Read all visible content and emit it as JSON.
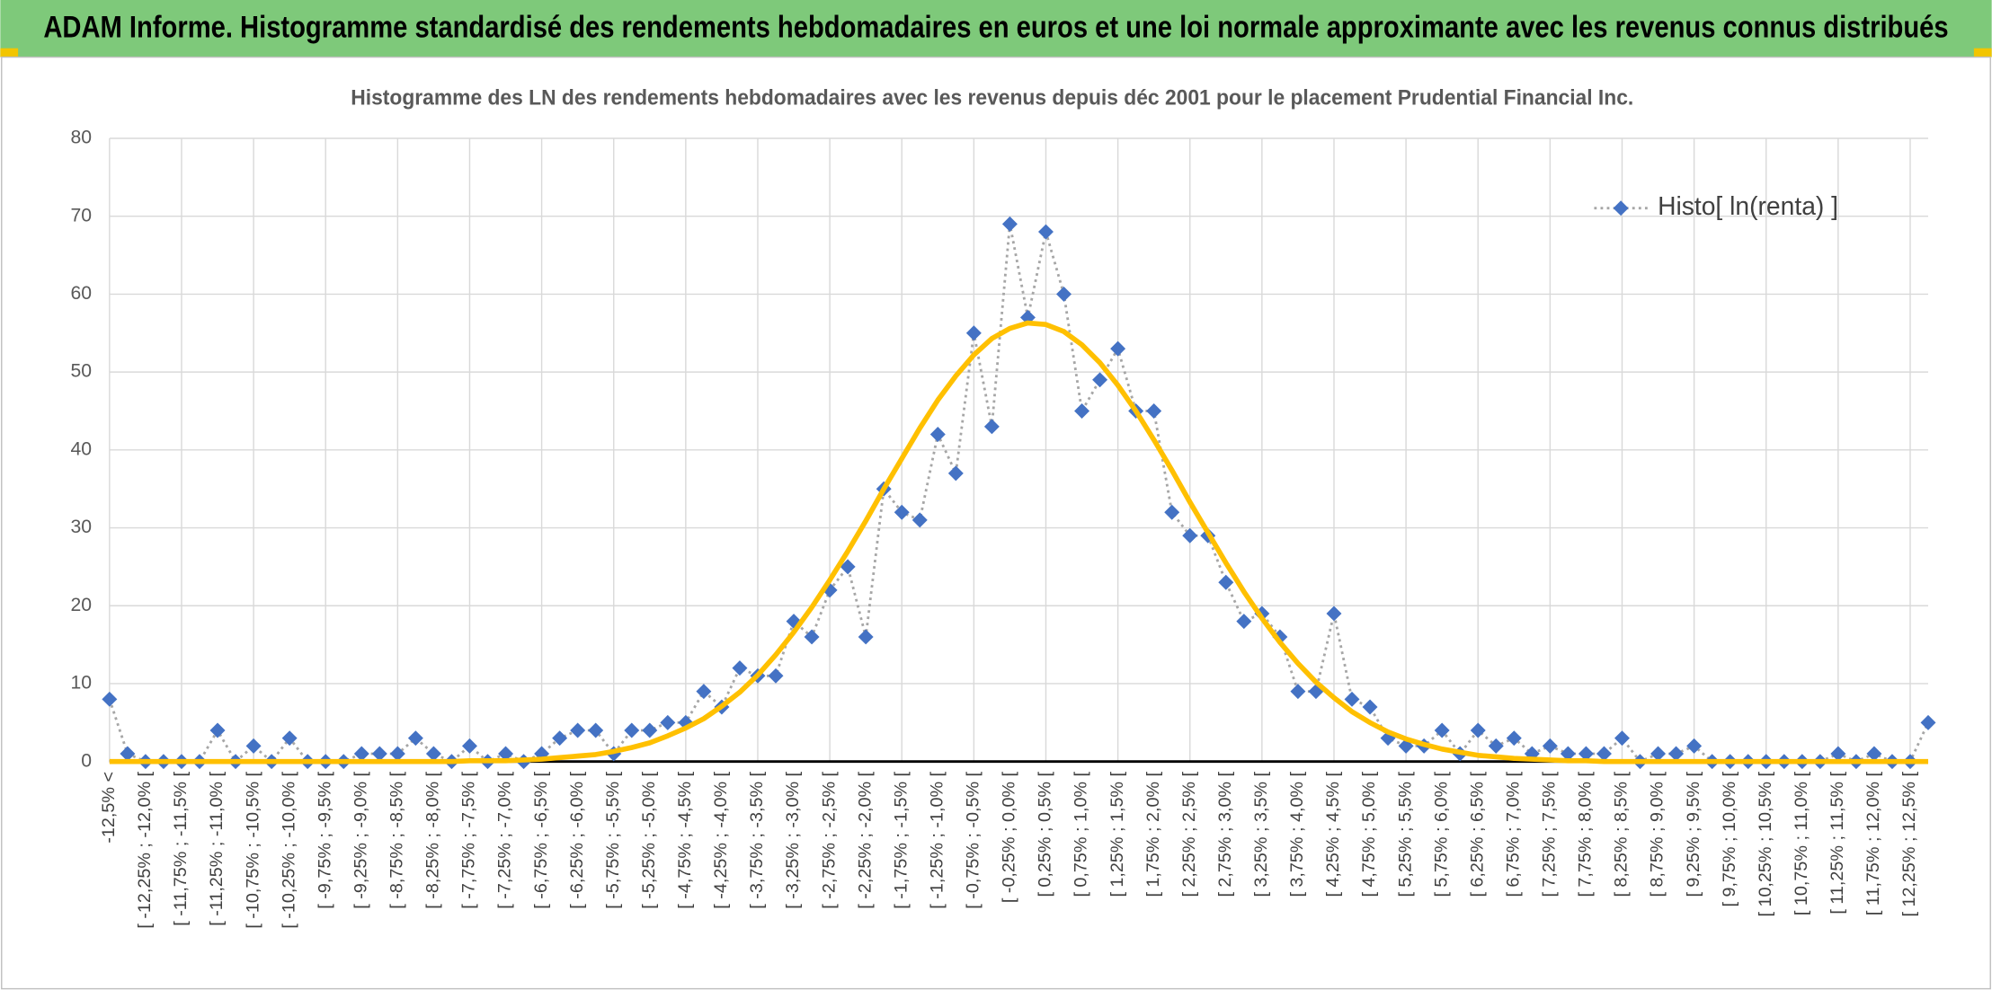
{
  "header": {
    "title": "ADAM Informe. Histogramme standardisé des rendements hebdomadaires en euros et une loi normale approximante avec les revenus connus distribués"
  },
  "chart_data": {
    "type": "line",
    "title": "Histogramme des LN des rendements hebdomadaires avec les revenus depuis déc 2001 pour le placement Prudential Financial Inc.",
    "categories": [
      "-12,5% <",
      null,
      "[ -12,25% ; -12,0% [",
      null,
      "[ -11,75% ; -11,5% [",
      null,
      "[ -11,25% ; -11,0% [",
      null,
      "[ -10,75% ; -10,5% [",
      null,
      "[ -10,25% ; -10,0% [",
      null,
      "[ -9,75% ; -9,5% [",
      null,
      "[ -9,25% ; -9,0% [",
      null,
      "[ -8,75% ; -8,5% [",
      null,
      "[ -8,25% ; -8,0% [",
      null,
      "[ -7,75% ; -7,5% [",
      null,
      "[ -7,25% ; -7,0% [",
      null,
      "[ -6,75% ; -6,5% [",
      null,
      "[ -6,25% ; -6,0% [",
      null,
      "[ -5,75% ; -5,5% [",
      null,
      "[ -5,25% ; -5,0% [",
      null,
      "[ -4,75% ; -4,5% [",
      null,
      "[ -4,25% ; -4,0% [",
      null,
      "[ -3,75% ; -3,5% [",
      null,
      "[ -3,25% ; -3,0% [",
      null,
      "[ -2,75% ; -2,5% [",
      null,
      "[ -2,25% ; -2,0% [",
      null,
      "[ -1,75% ; -1,5% [",
      null,
      "[ -1,25% ; -1,0% [",
      null,
      "[ -0,75% ; -0,5% [",
      null,
      "[ -0,25% ; 0,0% [",
      null,
      "[ 0,25% ; 0,5% [",
      null,
      "[ 0,75% ; 1,0% [",
      null,
      "[ 1,25% ; 1,5% [",
      null,
      "[ 1,75% ; 2,0% [",
      null,
      "[ 2,25% ; 2,5% [",
      null,
      "[ 2,75% ; 3,0% [",
      null,
      "[ 3,25% ; 3,5% [",
      null,
      "[ 3,75% ; 4,0% [",
      null,
      "[ 4,25% ; 4,5% [",
      null,
      "[ 4,75% ; 5,0% [",
      null,
      "[ 5,25% ; 5,5% [",
      null,
      "[ 5,75% ; 6,0% [",
      null,
      "[ 6,25% ; 6,5% [",
      null,
      "[ 6,75% ; 7,0% [",
      null,
      "[ 7,25% ; 7,5% [",
      null,
      "[ 7,75% ; 8,0% [",
      null,
      "[ 8,25% ; 8,5% [",
      null,
      "[ 8,75% ; 9,0% [",
      null,
      "[ 9,25% ; 9,5% [",
      null,
      "[ 9,75% ; 10,0% [",
      null,
      "[ 10,25% ; 10,5% [",
      null,
      "[ 10,75% ; 11,0% [",
      null,
      "[ 11,25% ; 11,5% [",
      null,
      "[ 11,75% ; 12,0% [",
      null,
      "[ 12,25% ; 12,5% [",
      null
    ],
    "series": [
      {
        "name": "Histo[ ln(renta) ]",
        "color": "#4472c4",
        "line_color": "#a6a6a6",
        "marker": "diamond",
        "values": [
          8,
          1,
          0,
          0,
          0,
          0,
          4,
          0,
          2,
          0,
          3,
          0,
          0,
          0,
          1,
          1,
          1,
          3,
          1,
          0,
          2,
          0,
          1,
          0,
          1,
          3,
          4,
          4,
          1,
          4,
          4,
          5,
          5,
          9,
          7,
          12,
          11,
          11,
          18,
          16,
          22,
          25,
          16,
          35,
          32,
          31,
          42,
          37,
          55,
          43,
          69,
          57,
          68,
          60,
          45,
          49,
          53,
          45,
          45,
          32,
          29,
          29,
          23,
          18,
          19,
          16,
          9,
          9,
          19,
          8,
          7,
          3,
          2,
          2,
          4,
          1,
          4,
          2,
          3,
          1,
          2,
          1,
          1,
          1,
          3,
          0,
          1,
          1,
          2,
          0,
          0,
          0,
          0,
          0,
          0,
          0,
          1,
          0,
          1,
          0,
          0,
          5
        ]
      },
      {
        "color": "#ffc000",
        "values": [
          0,
          0,
          0,
          0,
          0,
          0,
          0,
          0,
          0,
          0,
          0,
          0,
          0,
          0,
          0,
          0,
          0,
          0,
          0,
          0,
          0.1,
          0.1,
          0.1,
          0.2,
          0.3,
          0.5,
          0.7,
          0.9,
          1.3,
          1.8,
          2.4,
          3.3,
          4.3,
          5.5,
          7.1,
          8.9,
          11.1,
          13.7,
          16.6,
          19.8,
          23.3,
          27.0,
          30.9,
          35.0,
          38.9,
          42.8,
          46.4,
          49.5,
          52.2,
          54.3,
          55.6,
          56.3,
          56.1,
          55.2,
          53.5,
          51.2,
          48.3,
          45.0,
          41.3,
          37.4,
          33.3,
          29.4,
          25.5,
          21.8,
          18.4,
          15.3,
          12.6,
          10.2,
          8.2,
          6.4,
          5.0,
          3.8,
          2.9,
          2.2,
          1.6,
          1.2,
          0.8,
          0.6,
          0.4,
          0.3,
          0.2,
          0.1,
          0.1,
          0,
          0,
          0,
          0,
          0,
          0,
          0,
          0,
          0,
          0,
          0,
          0,
          0,
          0,
          0,
          0,
          0,
          0,
          0
        ]
      }
    ],
    "ylim": [
      0,
      80
    ],
    "yticks": [
      0,
      10,
      20,
      30,
      40,
      50,
      60,
      70,
      80
    ],
    "grid": true,
    "legend": "top-right"
  }
}
